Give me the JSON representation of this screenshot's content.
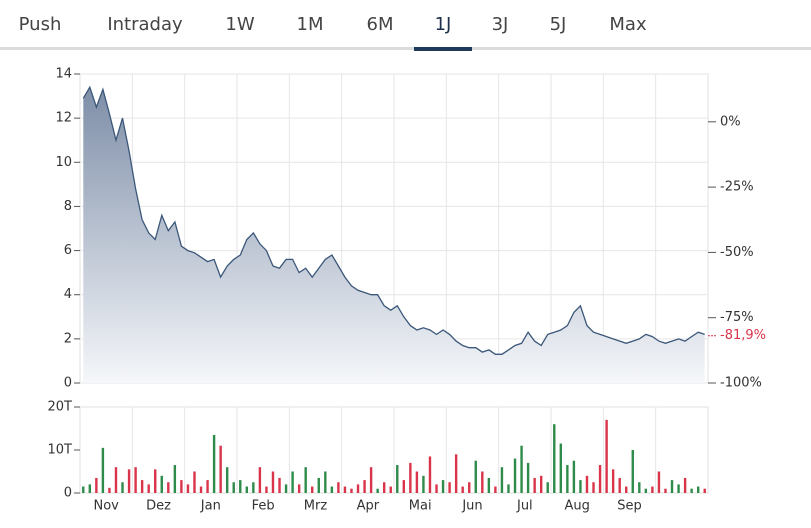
{
  "tabs": {
    "items": [
      "Push",
      "Intraday",
      "1W",
      "1M",
      "6M",
      "1J",
      "3J",
      "5J",
      "Max"
    ],
    "active": 5
  },
  "chart_data": [
    {
      "type": "area",
      "line_color": "#3b5779",
      "grid": true,
      "categories": [
        "Nov",
        null,
        null,
        null,
        null,
        null,
        null,
        null,
        "Dez",
        null,
        null,
        null,
        null,
        null,
        null,
        null,
        "Jan",
        null,
        null,
        null,
        null,
        null,
        null,
        null,
        "Feb",
        null,
        null,
        null,
        null,
        null,
        null,
        null,
        "Mrz",
        null,
        null,
        null,
        null,
        null,
        null,
        null,
        "Apr",
        null,
        null,
        null,
        null,
        null,
        null,
        null,
        "Mai",
        null,
        null,
        null,
        null,
        null,
        null,
        null,
        "Jun",
        null,
        null,
        null,
        null,
        null,
        null,
        null,
        "Jul",
        null,
        null,
        null,
        null,
        null,
        null,
        null,
        "Aug",
        null,
        null,
        null,
        null,
        null,
        null,
        null,
        "Sep",
        null,
        null,
        null,
        null,
        null,
        null,
        null,
        null,
        null,
        null,
        null,
        null,
        null,
        null,
        null
      ],
      "values": [
        12.9,
        13.4,
        12.5,
        13.3,
        12.2,
        11.0,
        12.0,
        10.5,
        8.8,
        7.4,
        6.8,
        6.5,
        7.6,
        6.9,
        7.3,
        6.2,
        6.0,
        5.9,
        5.7,
        5.5,
        5.6,
        4.8,
        5.3,
        5.6,
        5.8,
        6.5,
        6.8,
        6.3,
        6.0,
        5.3,
        5.2,
        5.6,
        5.6,
        5.0,
        5.2,
        4.8,
        5.2,
        5.6,
        5.8,
        5.3,
        4.8,
        4.4,
        4.2,
        4.1,
        4.0,
        4.0,
        3.5,
        3.3,
        3.5,
        3.0,
        2.6,
        2.4,
        2.5,
        2.4,
        2.2,
        2.4,
        2.2,
        1.9,
        1.7,
        1.6,
        1.6,
        1.4,
        1.5,
        1.3,
        1.3,
        1.5,
        1.7,
        1.8,
        2.3,
        1.9,
        1.7,
        2.2,
        2.3,
        2.4,
        2.6,
        3.2,
        3.5,
        2.6,
        2.3,
        2.2,
        2.1,
        2.0,
        1.9,
        1.8,
        1.9,
        2.0,
        2.2,
        2.1,
        1.9,
        1.8,
        1.9,
        2.0,
        1.9,
        2.1,
        2.3,
        2.2
      ],
      "ylim": [
        0,
        14
      ],
      "yticks": [
        0,
        2,
        4,
        6,
        8,
        10,
        12,
        14
      ],
      "y2lim": [
        -100,
        18.3
      ],
      "y2ticks": [
        {
          "value": 0,
          "label": "0%"
        },
        {
          "value": -25,
          "label": "-25%"
        },
        {
          "value": -50,
          "label": "-50%"
        },
        {
          "value": -75,
          "label": "-75%"
        },
        {
          "value": -100,
          "label": "-100%"
        }
      ],
      "current_change": {
        "value": -81.9,
        "label": "-81,9%",
        "color": "#d9344a"
      }
    },
    {
      "type": "bar",
      "up_color": "#2e8b4a",
      "down_color": "#d9344a",
      "values": [
        1500,
        2000,
        3500,
        10500,
        1200,
        6000,
        2500,
        5500,
        6000,
        3000,
        2000,
        5500,
        4000,
        2500,
        6500,
        3000,
        2000,
        5000,
        1500,
        3000,
        13500,
        11000,
        6000,
        2500,
        3000,
        1500,
        2500,
        6000,
        1500,
        5000,
        3500,
        2000,
        5000,
        2000,
        6000,
        1500,
        3500,
        5000,
        1500,
        2500,
        1500,
        1000,
        2000,
        3000,
        6000,
        1000,
        2500,
        1500,
        6500,
        3000,
        7000,
        5000,
        4000,
        8500,
        2000,
        3000,
        2500,
        9000,
        1500,
        2500,
        7500,
        5000,
        3500,
        1500,
        6000,
        2000,
        8000,
        11000,
        7000,
        3500,
        4000,
        2500,
        16000,
        11500,
        6500,
        7500,
        3000,
        4000,
        2500,
        6500,
        17000,
        5500,
        3500,
        1500,
        10000,
        2500,
        1000,
        1500,
        5000,
        1000,
        3000,
        2000,
        3500,
        1000,
        1500,
        1000
      ],
      "ylim": [
        0,
        20000
      ],
      "yticks": [
        0,
        {
          "value": 10000,
          "label": "10T"
        },
        {
          "value": 20000,
          "label": "20T"
        }
      ]
    }
  ]
}
